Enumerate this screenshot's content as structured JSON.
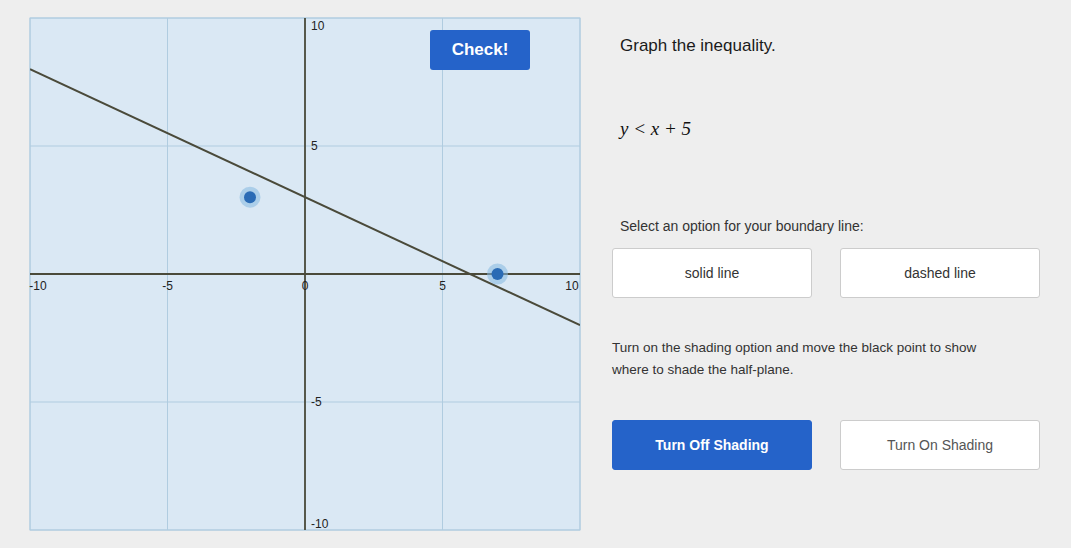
{
  "chart_data": {
    "type": "line",
    "title": "Graph the inequality.",
    "annotations": [
      "y < x + 5",
      "Select an option for your boundary line:",
      "solid line",
      "dashed line",
      "Turn on the shading option and move the black point to show",
      "where to shade the half-plane.",
      "Turn Off Shading",
      "Turn On Shading",
      "Check!"
    ],
    "series": [
      {
        "type": "line",
        "color": "#4a4a3a",
        "x": [
          -10,
          10
        ],
        "values": [
          8,
          -2
        ]
      },
      {
        "type": "scatter",
        "color": "#2a6bb5",
        "x": [
          -2,
          7
        ],
        "values": [
          3,
          0
        ]
      }
    ],
    "xlim": [
      -10,
      10
    ],
    "ylim": [
      -10,
      10
    ],
    "xticks": [
      -10,
      -5,
      0,
      5,
      10
    ],
    "yticks": [
      -10,
      -5,
      5,
      10
    ],
    "grid": true
  }
}
